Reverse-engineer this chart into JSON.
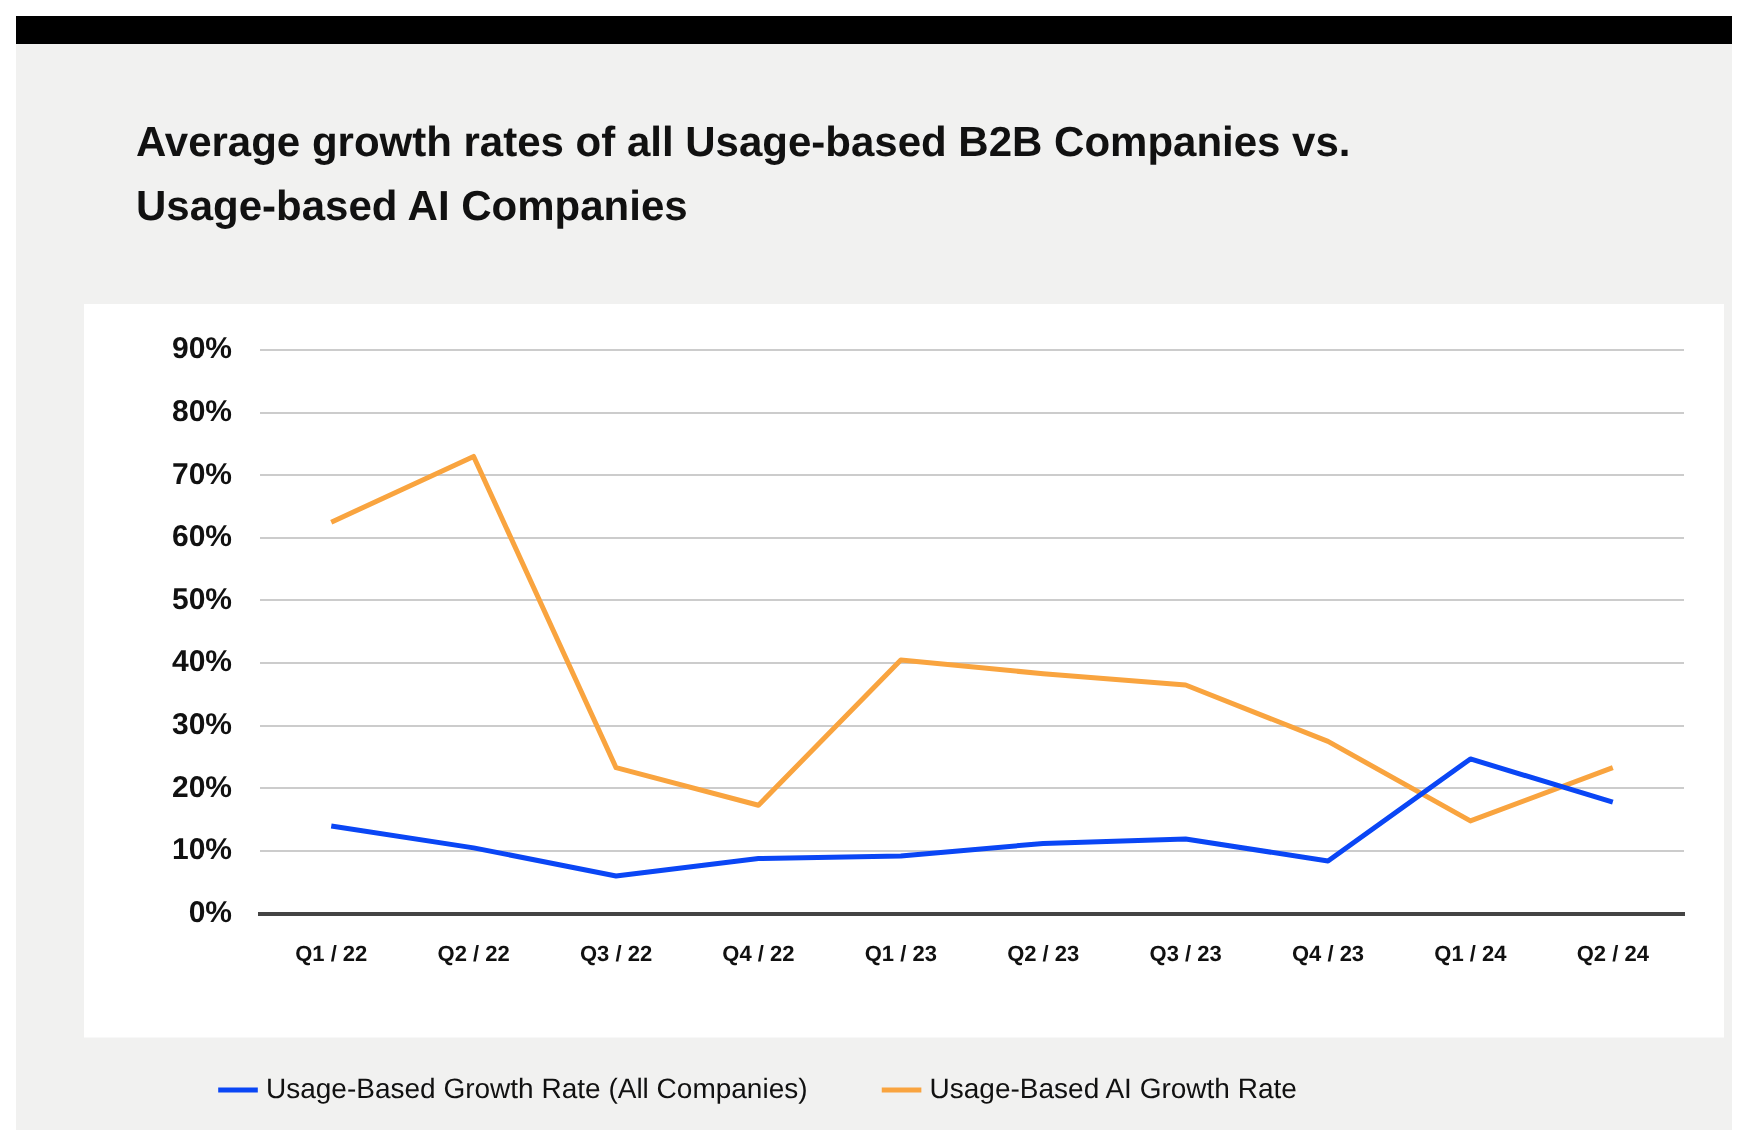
{
  "chart_data": {
    "type": "line",
    "title": "Average growth rates of all Usage-based B2B Companies vs. Usage-based AI Companies",
    "categories": [
      "Q1 / 22",
      "Q2 / 22",
      "Q3 / 22",
      "Q4 / 22",
      "Q1 / 23",
      "Q2 / 23",
      "Q3 / 23",
      "Q4 / 23",
      "Q1 / 24",
      "Q2 / 24"
    ],
    "series": [
      {
        "name": "Usage-Based Growth Rate (All Companies)",
        "color": "#0a46f5",
        "values": [
          14,
          10.5,
          6,
          8.8,
          9.2,
          11.2,
          11.9,
          8.4,
          24.7,
          17.8
        ]
      },
      {
        "name": "Usage-Based AI Growth Rate",
        "color": "#f9a43f",
        "values": [
          62.5,
          73,
          23.3,
          17.3,
          40.5,
          38.3,
          36.5,
          27.5,
          14.8,
          23.3
        ]
      }
    ],
    "ylim": [
      0,
      90
    ],
    "yticks": [
      {
        "value": 0,
        "label": "0%"
      },
      {
        "value": 10,
        "label": "10%"
      },
      {
        "value": 20,
        "label": "20%"
      },
      {
        "value": 30,
        "label": "30%"
      },
      {
        "value": 40,
        "label": "40%"
      },
      {
        "value": 50,
        "label": "50%"
      },
      {
        "value": 60,
        "label": "60%"
      },
      {
        "value": 70,
        "label": "70%"
      },
      {
        "value": 80,
        "label": "80%"
      },
      {
        "value": 90,
        "label": "90%"
      }
    ],
    "grid": "y",
    "legend": "bottom",
    "marker": "none",
    "line_style": "solid"
  }
}
